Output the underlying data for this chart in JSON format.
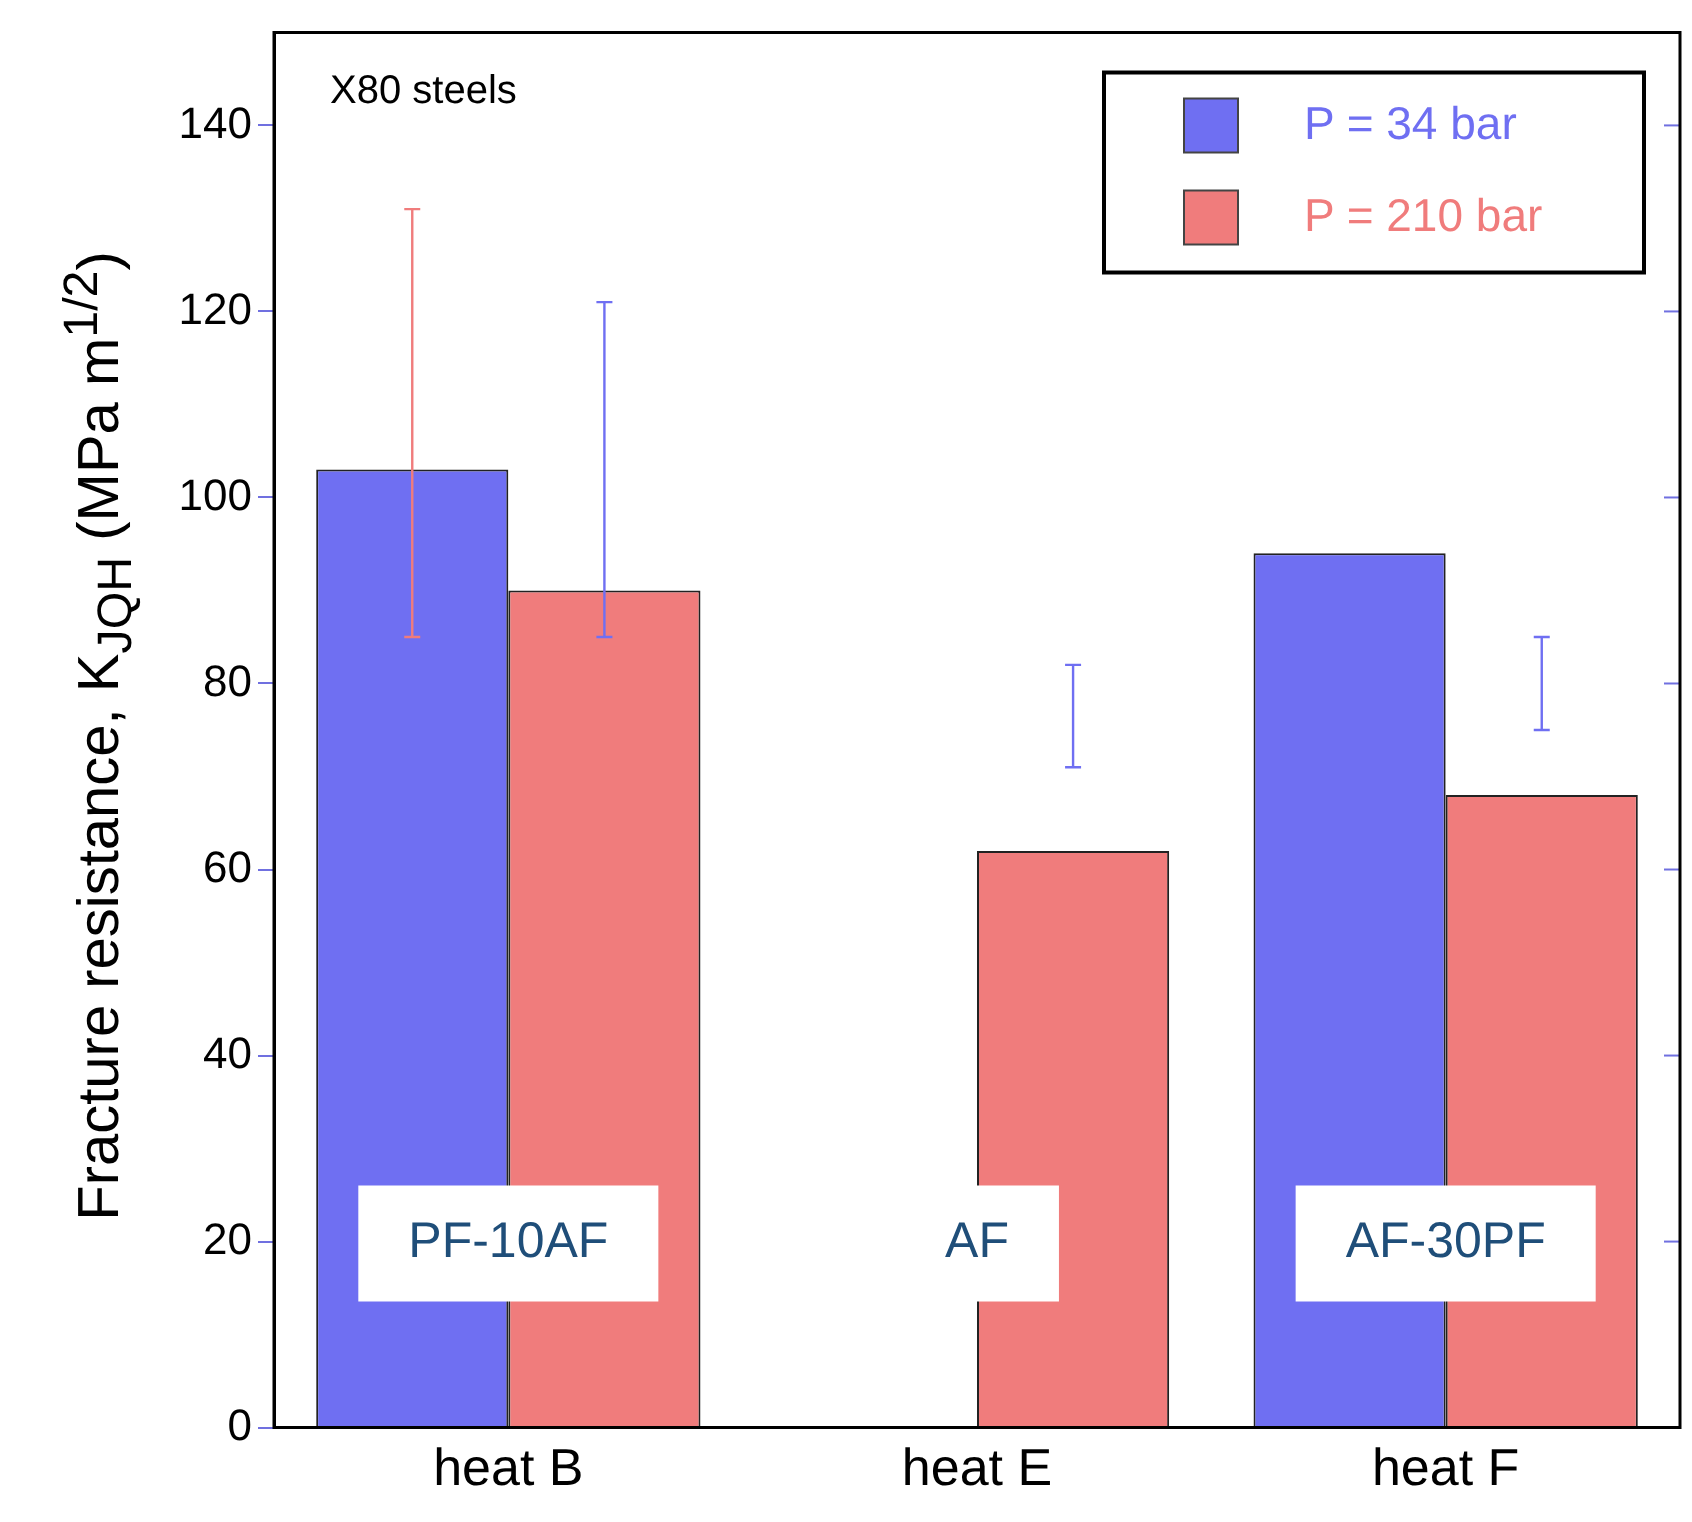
{
  "chart_data": {
    "type": "bar",
    "ylabel": "Fracture resistance, K$_{JQH}$ (MPa m$^{1/2}$)",
    "categories": [
      "heat B",
      "heat E",
      "heat F"
    ],
    "series": [
      {
        "name": "P = 34 bar",
        "color": "#6f6ff2",
        "values": [
          103,
          null,
          94
        ],
        "errors": [
          [
            85,
            131
          ],
          null,
          null
        ]
      },
      {
        "name": "P = 210 bar",
        "color": "#f07c7c",
        "values": [
          90,
          62,
          68
        ],
        "errors": [
          [
            85,
            121
          ],
          [
            71,
            82
          ],
          [
            75,
            85
          ]
        ]
      }
    ],
    "ylim": [
      0,
      150
    ],
    "yticks": [
      0,
      20,
      40,
      60,
      80,
      100,
      120,
      140
    ],
    "grid": false,
    "legend": "top right",
    "annotations": [
      "X80 steels",
      {
        "text": "PF-10AF",
        "x": "heat B",
        "y": 20
      },
      {
        "text": "AF",
        "x": "heat E",
        "y": 20
      },
      {
        "text": "AF-30PF",
        "x": "heat F",
        "y": 20
      }
    ]
  }
}
